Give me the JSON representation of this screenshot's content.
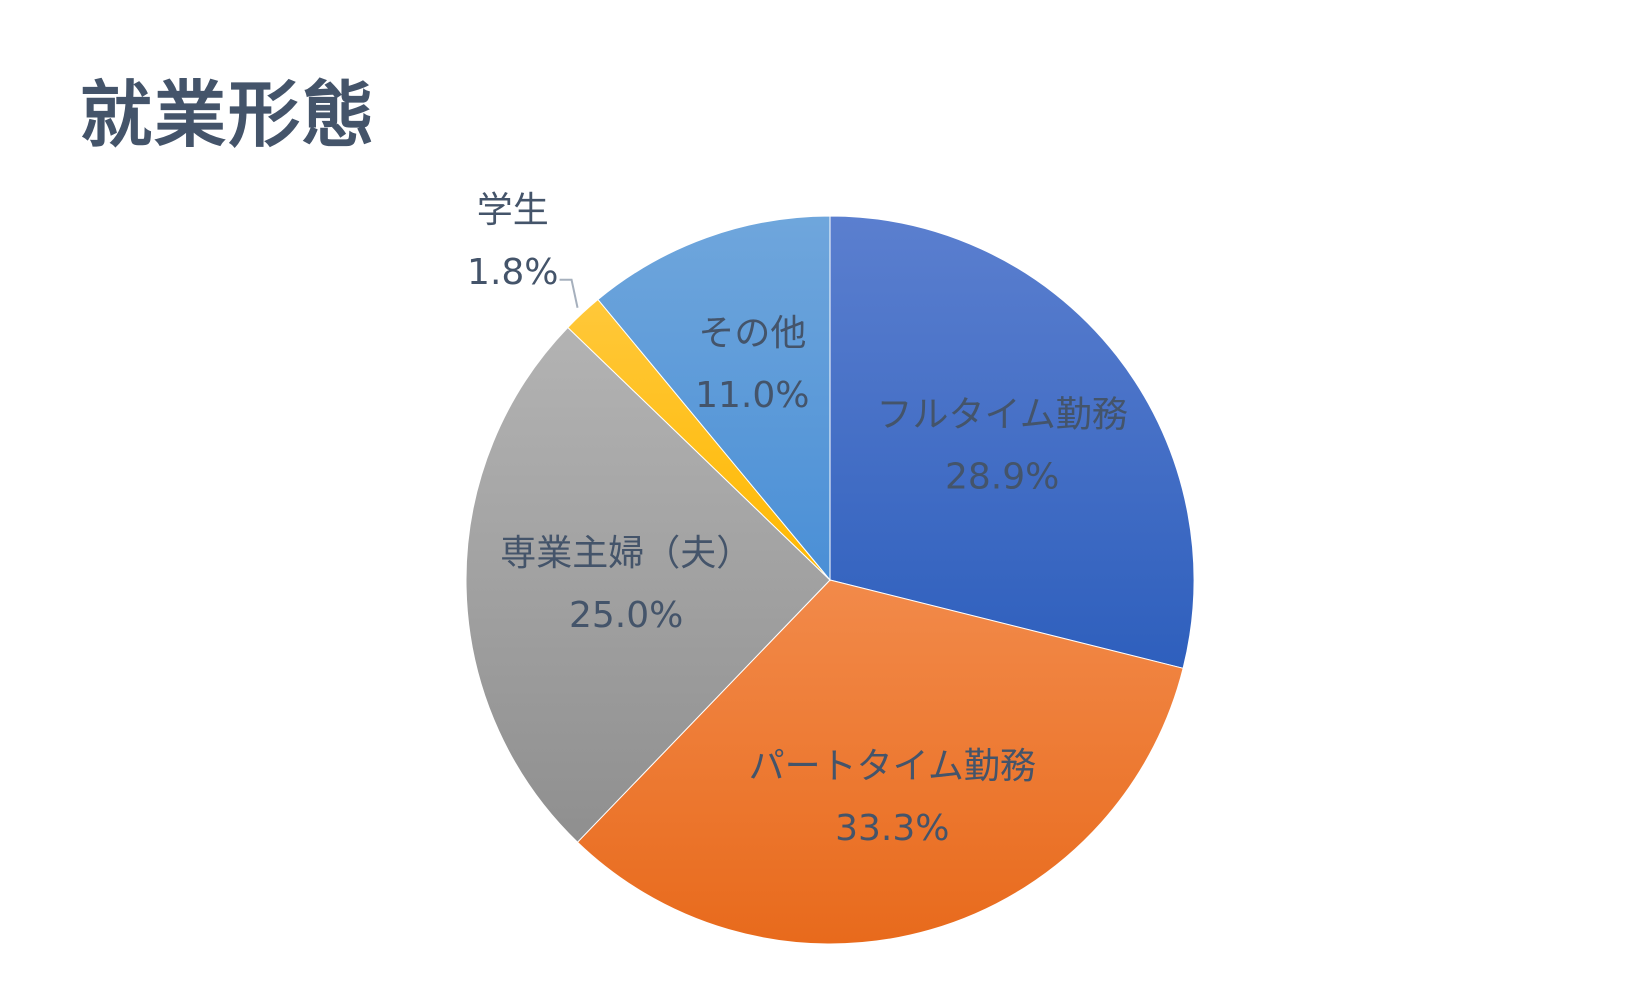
{
  "title": "就業形態",
  "chart_data": {
    "type": "pie",
    "title": "就業形態",
    "start_angle_deg": 0,
    "direction": "clockwise",
    "slices": [
      {
        "label": "フルタイム勤務",
        "value": 28.9,
        "value_label": "28.9%",
        "color_top": "#5b7fcf",
        "color_bottom": "#2e5fbd"
      },
      {
        "label": "パートタイム勤務",
        "value": 33.3,
        "value_label": "33.3%",
        "color_top": "#f28a4a",
        "color_bottom": "#e86a1c"
      },
      {
        "label": "専業主婦（夫）",
        "value": 25.0,
        "value_label": "25.0%",
        "color_top": "#b3b3b3",
        "color_bottom": "#8f8f8f"
      },
      {
        "label": "学生",
        "value": 1.8,
        "value_label": "1.8%",
        "color_top": "#ffc83a",
        "color_bottom": "#ffb800"
      },
      {
        "label": "その他",
        "value": 11.0,
        "value_label": "11.0%",
        "color_top": "#6fa6dc",
        "color_bottom": "#4a8fd6"
      }
    ],
    "label_color": "#44546a"
  }
}
